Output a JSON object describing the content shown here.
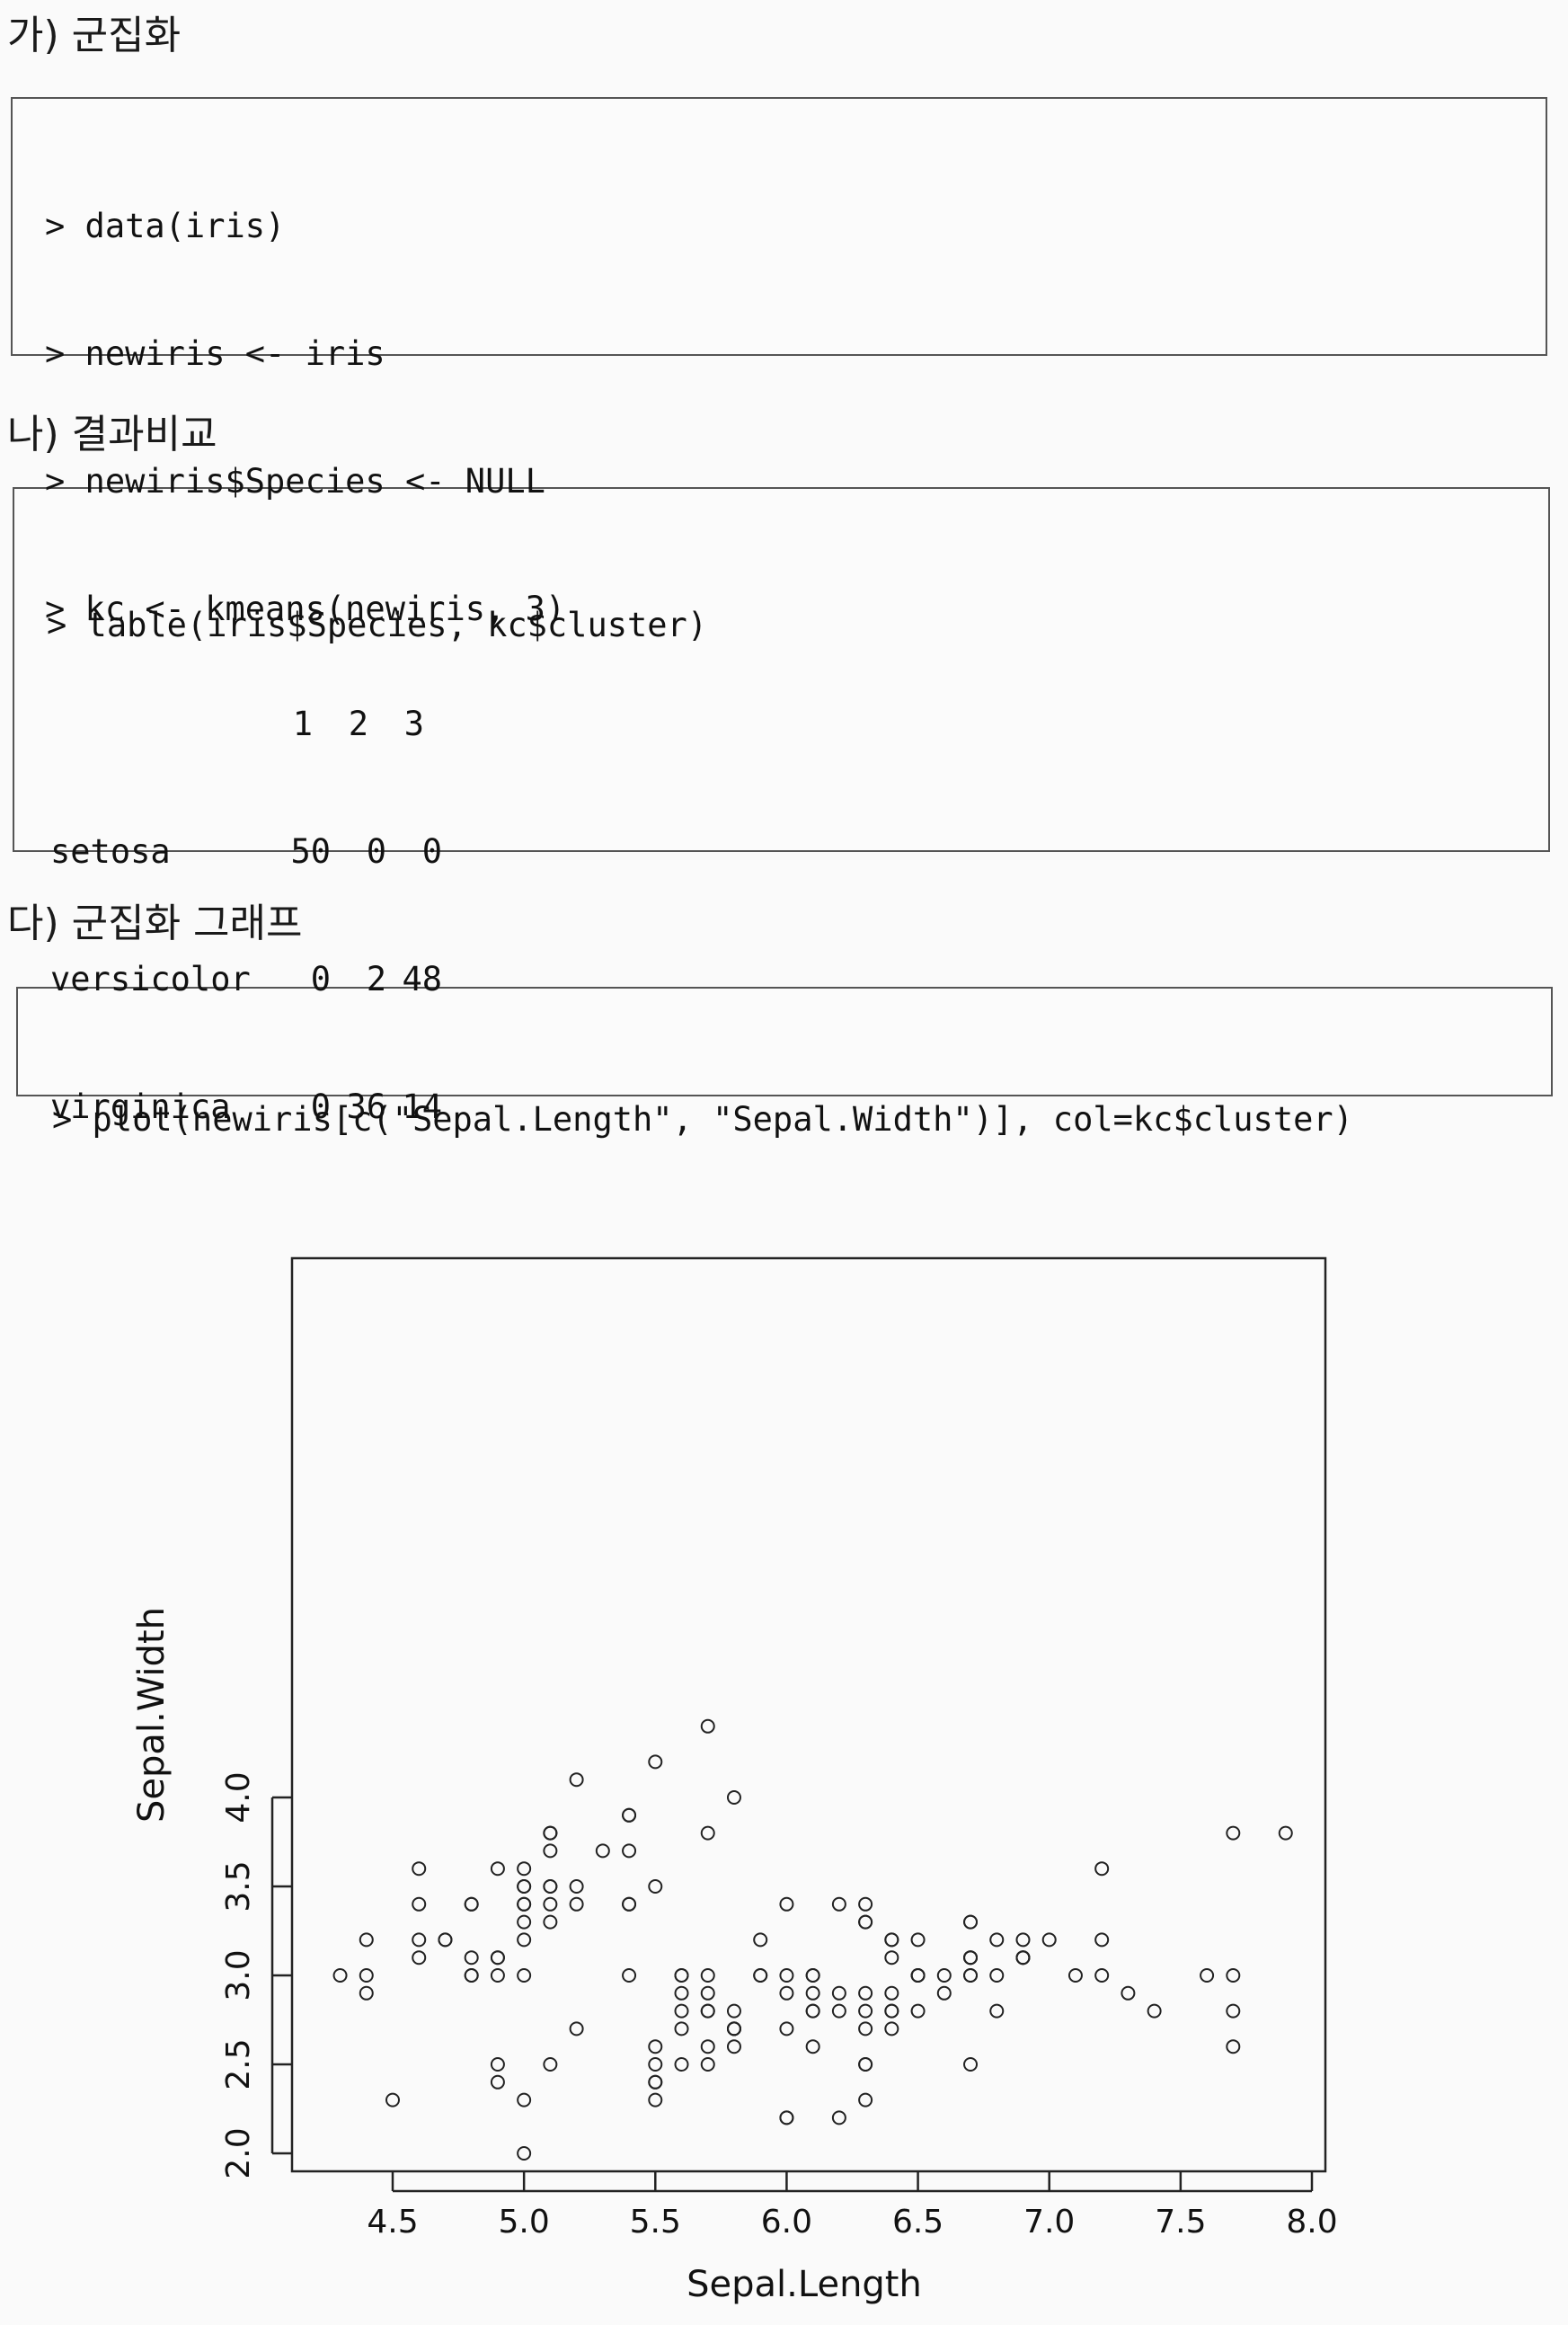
{
  "sections": [
    {
      "heading": "가) 군집화",
      "code": [
        "> data(iris)",
        "> newiris <- iris",
        "> newiris$Species <- NULL",
        "> kc <- kmeans(newiris, 3)"
      ]
    },
    {
      "heading": "나) 결과비교",
      "code": [
        "> table(iris$Species, kc$cluster)"
      ],
      "table": {
        "columns": [
          "1",
          "2",
          "3"
        ],
        "rows": [
          {
            "label": "setosa",
            "values": [
              "50",
              "0",
              "0"
            ]
          },
          {
            "label": "versicolor",
            "values": [
              "0",
              "2",
              "48"
            ]
          },
          {
            "label": "virginica",
            "values": [
              "0",
              "36",
              "14"
            ]
          }
        ]
      }
    },
    {
      "heading": "다) 군집화 그래프",
      "code": [
        "> plot(newiris[c(\"Sepal.Length\", \"Sepal.Width\")], col=kc$cluster)"
      ]
    }
  ],
  "chart_data": {
    "type": "scatter",
    "title": "",
    "xlabel": "Sepal.Length",
    "ylabel": "Sepal.Width",
    "xlim": [
      4.3,
      7.9
    ],
    "ylim": [
      2.0,
      4.4
    ],
    "xticks": [
      "4.5",
      "5.0",
      "5.5",
      "6.0",
      "6.5",
      "7.0",
      "7.5",
      "8.0"
    ],
    "yticks": [
      "2.0",
      "2.5",
      "3.0",
      "3.5",
      "4.0"
    ],
    "marker": "open-circle",
    "series": [
      {
        "points": [
          [
            5.1,
            3.5
          ],
          [
            4.9,
            3.0
          ],
          [
            4.7,
            3.2
          ],
          [
            4.6,
            3.1
          ],
          [
            5.0,
            3.6
          ],
          [
            5.4,
            3.9
          ],
          [
            4.6,
            3.4
          ],
          [
            5.0,
            3.4
          ],
          [
            4.4,
            2.9
          ],
          [
            4.9,
            3.1
          ],
          [
            5.4,
            3.7
          ],
          [
            4.8,
            3.4
          ],
          [
            4.8,
            3.0
          ],
          [
            4.3,
            3.0
          ],
          [
            5.8,
            4.0
          ],
          [
            5.7,
            4.4
          ],
          [
            5.4,
            3.9
          ],
          [
            5.1,
            3.5
          ],
          [
            5.7,
            3.8
          ],
          [
            5.1,
            3.8
          ],
          [
            5.4,
            3.4
          ],
          [
            5.1,
            3.7
          ],
          [
            4.6,
            3.6
          ],
          [
            5.1,
            3.3
          ],
          [
            4.8,
            3.4
          ],
          [
            5.0,
            3.0
          ],
          [
            5.0,
            3.4
          ],
          [
            5.2,
            3.5
          ],
          [
            5.2,
            3.4
          ],
          [
            4.7,
            3.2
          ],
          [
            4.8,
            3.1
          ],
          [
            5.4,
            3.4
          ],
          [
            5.2,
            4.1
          ],
          [
            5.5,
            4.2
          ],
          [
            4.9,
            3.1
          ],
          [
            5.0,
            3.2
          ],
          [
            5.5,
            3.5
          ],
          [
            4.9,
            3.6
          ],
          [
            4.4,
            3.0
          ],
          [
            5.1,
            3.4
          ],
          [
            5.0,
            3.5
          ],
          [
            4.5,
            2.3
          ],
          [
            4.4,
            3.2
          ],
          [
            5.0,
            3.5
          ],
          [
            5.1,
            3.8
          ],
          [
            4.8,
            3.0
          ],
          [
            5.1,
            3.8
          ],
          [
            4.6,
            3.2
          ],
          [
            5.3,
            3.7
          ],
          [
            5.0,
            3.3
          ],
          [
            7.0,
            3.2
          ],
          [
            6.4,
            3.2
          ],
          [
            6.9,
            3.1
          ],
          [
            5.5,
            2.3
          ],
          [
            6.5,
            2.8
          ],
          [
            5.7,
            2.8
          ],
          [
            6.3,
            3.3
          ],
          [
            4.9,
            2.4
          ],
          [
            6.6,
            2.9
          ],
          [
            5.2,
            2.7
          ],
          [
            5.0,
            2.0
          ],
          [
            5.9,
            3.0
          ],
          [
            6.0,
            2.2
          ],
          [
            6.1,
            2.9
          ],
          [
            5.6,
            2.9
          ],
          [
            6.7,
            3.1
          ],
          [
            5.6,
            3.0
          ],
          [
            5.8,
            2.7
          ],
          [
            6.2,
            2.2
          ],
          [
            5.6,
            2.5
          ],
          [
            5.9,
            3.2
          ],
          [
            6.1,
            2.8
          ],
          [
            6.3,
            2.5
          ],
          [
            6.1,
            2.8
          ],
          [
            6.4,
            2.9
          ],
          [
            6.6,
            3.0
          ],
          [
            6.8,
            2.8
          ],
          [
            6.7,
            3.0
          ],
          [
            6.0,
            2.9
          ],
          [
            5.7,
            2.6
          ],
          [
            5.5,
            2.4
          ],
          [
            5.5,
            2.4
          ],
          [
            5.8,
            2.7
          ],
          [
            6.0,
            2.7
          ],
          [
            5.4,
            3.0
          ],
          [
            6.0,
            3.4
          ],
          [
            6.7,
            3.1
          ],
          [
            6.3,
            2.3
          ],
          [
            5.6,
            3.0
          ],
          [
            5.5,
            2.5
          ],
          [
            5.5,
            2.6
          ],
          [
            6.1,
            3.0
          ],
          [
            5.8,
            2.6
          ],
          [
            5.0,
            2.3
          ],
          [
            5.6,
            2.7
          ],
          [
            5.7,
            3.0
          ],
          [
            5.7,
            2.9
          ],
          [
            6.2,
            2.9
          ],
          [
            5.1,
            2.5
          ],
          [
            5.7,
            2.8
          ],
          [
            6.3,
            3.3
          ],
          [
            5.8,
            2.7
          ],
          [
            7.1,
            3.0
          ],
          [
            6.3,
            2.9
          ],
          [
            6.5,
            3.0
          ],
          [
            7.6,
            3.0
          ],
          [
            4.9,
            2.5
          ],
          [
            7.3,
            2.9
          ],
          [
            6.7,
            2.5
          ],
          [
            7.2,
            3.6
          ],
          [
            6.5,
            3.2
          ],
          [
            6.4,
            2.7
          ],
          [
            6.8,
            3.0
          ],
          [
            5.7,
            2.5
          ],
          [
            5.8,
            2.8
          ],
          [
            6.4,
            3.2
          ],
          [
            6.5,
            3.0
          ],
          [
            7.7,
            3.8
          ],
          [
            7.7,
            2.6
          ],
          [
            6.0,
            2.2
          ],
          [
            6.9,
            3.2
          ],
          [
            5.6,
            2.8
          ],
          [
            7.7,
            2.8
          ],
          [
            6.3,
            2.7
          ],
          [
            6.7,
            3.3
          ],
          [
            7.2,
            3.2
          ],
          [
            6.2,
            2.8
          ],
          [
            6.1,
            3.0
          ],
          [
            6.4,
            2.8
          ],
          [
            7.2,
            3.0
          ],
          [
            7.4,
            2.8
          ],
          [
            7.9,
            3.8
          ],
          [
            6.4,
            2.8
          ],
          [
            6.3,
            2.8
          ],
          [
            6.1,
            2.6
          ],
          [
            7.7,
            3.0
          ],
          [
            6.3,
            3.4
          ],
          [
            6.4,
            3.1
          ],
          [
            6.0,
            3.0
          ],
          [
            6.9,
            3.1
          ],
          [
            6.7,
            3.1
          ],
          [
            6.9,
            3.1
          ],
          [
            5.8,
            2.7
          ],
          [
            6.8,
            3.2
          ],
          [
            6.7,
            3.3
          ],
          [
            6.7,
            3.0
          ],
          [
            6.3,
            2.5
          ],
          [
            6.5,
            3.0
          ],
          [
            6.2,
            3.4
          ],
          [
            5.9,
            3.0
          ]
        ]
      }
    ]
  }
}
